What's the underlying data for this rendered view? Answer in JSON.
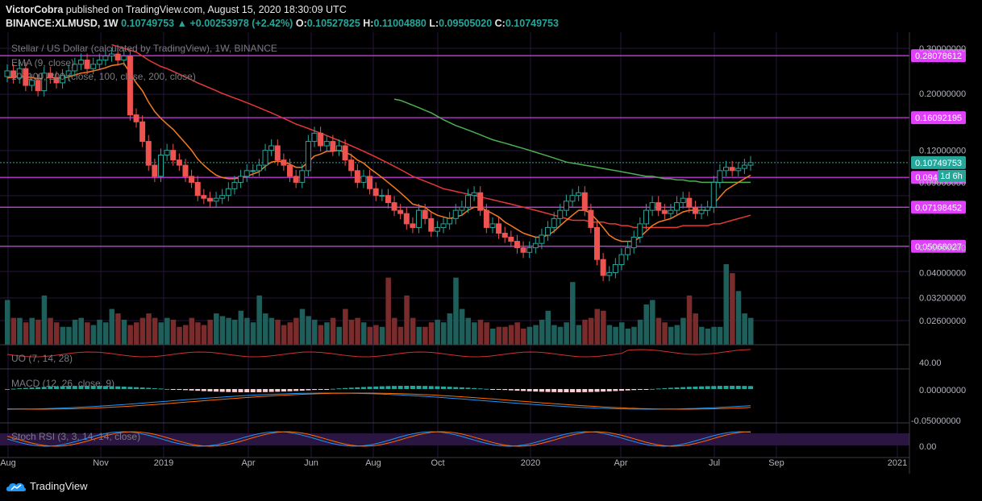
{
  "header": {
    "author": "VictorCobra",
    "published": " published on TradingView.com, August 15, 2020 18:30:09 UTC",
    "symbol": "BINANCE:XLMUSD, 1W",
    "last": "0.10749753",
    "change": "+0.00253978 (+2.42%)",
    "o_label": "O:",
    "o": "0.10527825",
    "h_label": "H:",
    "h": "0.11004880",
    "l_label": "L:",
    "l": "0.09505020",
    "c_label": "C:",
    "c": "0.10749753"
  },
  "legend": {
    "title": "Stellar / US Dollar (calculated by TradingView), 1W, BINANCE",
    "ema": "EMA (9, close)",
    "ma": "10, 100, 200 (close, 100, close, 200, close)",
    "uo": "UO (7, 14, 28)",
    "macd": "MACD (12, 26, close, 9)",
    "stoch": "Stoch RSI (3, 3, 14, 14, close)"
  },
  "footer": {
    "brand": "TradingView"
  },
  "colors": {
    "up": "#26a69a",
    "down": "#ef5350",
    "ema9": "#f57c1f",
    "ma100": "#e53935",
    "ma200": "#4caf50",
    "hline": "#e040fb",
    "vol_up": "#1f5f5b",
    "vol_down": "#7a2b2b"
  },
  "chart_data": [
    {
      "type": "candlestick",
      "title": "Stellar / US Dollar (calculated by TradingView), 1W, BINANCE",
      "scale": "log",
      "x_ticks": [
        "Aug",
        "Nov",
        "2019",
        "Apr",
        "Jun",
        "Aug",
        "Oct",
        "2020",
        "Apr",
        "Jul",
        "Sep",
        "2021"
      ],
      "y_ticks": [
        "0.30000000",
        "0.20000000",
        "0.12000000",
        "0.09000000",
        "0.05000000",
        "0.04000000",
        "0.03200000",
        "0.02600000"
      ],
      "horizontal_levels": [
        {
          "label": "0.28078612",
          "value": 0.28078612
        },
        {
          "label": "0.16092195",
          "value": 0.16092195
        },
        {
          "label": "0.09413011",
          "value": 0.09413011
        },
        {
          "label": "0.07198452",
          "value": 0.07198452
        },
        {
          "label": "0.05068027",
          "value": 0.05068027
        }
      ],
      "last_price_label": "0.10749753",
      "countdown": "1d 6h",
      "closes": [
        0.245,
        0.23,
        0.25,
        0.215,
        0.225,
        0.205,
        0.24,
        0.23,
        0.22,
        0.235,
        0.245,
        0.26,
        0.27,
        0.25,
        0.26,
        0.27,
        0.28,
        0.285,
        0.27,
        0.28,
        0.165,
        0.155,
        0.13,
        0.105,
        0.095,
        0.115,
        0.12,
        0.11,
        0.105,
        0.095,
        0.09,
        0.08,
        0.078,
        0.076,
        0.078,
        0.08,
        0.085,
        0.09,
        0.095,
        0.1,
        0.1,
        0.105,
        0.12,
        0.125,
        0.11,
        0.105,
        0.095,
        0.09,
        0.1,
        0.13,
        0.14,
        0.125,
        0.13,
        0.12,
        0.125,
        0.11,
        0.1,
        0.09,
        0.095,
        0.085,
        0.08,
        0.08,
        0.075,
        0.07,
        0.068,
        0.062,
        0.06,
        0.07,
        0.065,
        0.058,
        0.06,
        0.062,
        0.065,
        0.07,
        0.072,
        0.08,
        0.082,
        0.07,
        0.06,
        0.062,
        0.057,
        0.055,
        0.053,
        0.05,
        0.048,
        0.05,
        0.052,
        0.056,
        0.06,
        0.065,
        0.07,
        0.076,
        0.08,
        0.082,
        0.07,
        0.06,
        0.045,
        0.039,
        0.04,
        0.043,
        0.047,
        0.05,
        0.055,
        0.062,
        0.07,
        0.075,
        0.07,
        0.068,
        0.07,
        0.075,
        0.078,
        0.072,
        0.068,
        0.07,
        0.072,
        0.09,
        0.1,
        0.103,
        0.1,
        0.102,
        0.105,
        0.1075
      ],
      "ema9": [
        0.23,
        0.232,
        0.234,
        0.232,
        0.231,
        0.228,
        0.23,
        0.231,
        0.23,
        0.23,
        0.232,
        0.236,
        0.24,
        0.242,
        0.245,
        0.248,
        0.252,
        0.257,
        0.259,
        0.262,
        0.24,
        0.22,
        0.205,
        0.185,
        0.17,
        0.16,
        0.152,
        0.145,
        0.136,
        0.128,
        0.12,
        0.111,
        0.105,
        0.1,
        0.096,
        0.094,
        0.093,
        0.093,
        0.094,
        0.095,
        0.097,
        0.099,
        0.104,
        0.108,
        0.109,
        0.108,
        0.106,
        0.103,
        0.103,
        0.108,
        0.114,
        0.116,
        0.119,
        0.119,
        0.12,
        0.118,
        0.115,
        0.11,
        0.107,
        0.102,
        0.098,
        0.094,
        0.09,
        0.086,
        0.082,
        0.078,
        0.074,
        0.073,
        0.072,
        0.069,
        0.067,
        0.066,
        0.065,
        0.066,
        0.067,
        0.07,
        0.072,
        0.072,
        0.07,
        0.068,
        0.066,
        0.063,
        0.061,
        0.059,
        0.057,
        0.056,
        0.055,
        0.055,
        0.056,
        0.058,
        0.061,
        0.064,
        0.067,
        0.07,
        0.07,
        0.068,
        0.064,
        0.06,
        0.056,
        0.054,
        0.053,
        0.053,
        0.053,
        0.055,
        0.058,
        0.061,
        0.063,
        0.064,
        0.065,
        0.067,
        0.069,
        0.07,
        0.07,
        0.07,
        0.07,
        0.074,
        0.079,
        0.084,
        0.087,
        0.09,
        0.093,
        0.096
      ],
      "ma100": [
        null,
        null,
        null,
        null,
        null,
        null,
        null,
        null,
        null,
        null,
        null,
        null,
        null,
        null,
        null,
        null,
        null,
        0.31,
        0.305,
        0.3,
        0.295,
        0.29,
        0.28,
        0.27,
        0.262,
        0.255,
        0.25,
        0.244,
        0.238,
        0.232,
        0.226,
        0.22,
        0.215,
        0.21,
        0.205,
        0.2,
        0.196,
        0.192,
        0.188,
        0.184,
        0.18,
        0.176,
        0.172,
        0.168,
        0.164,
        0.16,
        0.156,
        0.152,
        0.149,
        0.146,
        0.143,
        0.14,
        0.137,
        0.134,
        0.131,
        0.128,
        0.125,
        0.122,
        0.119,
        0.116,
        0.113,
        0.11,
        0.107,
        0.104,
        0.101,
        0.098,
        0.095,
        0.093,
        0.091,
        0.089,
        0.087,
        0.085,
        0.084,
        0.083,
        0.082,
        0.081,
        0.08,
        0.079,
        0.078,
        0.077,
        0.076,
        0.075,
        0.074,
        0.073,
        0.072,
        0.071,
        0.07,
        0.069,
        0.068,
        0.067,
        0.066,
        0.065,
        0.064,
        0.064,
        0.064,
        0.063,
        0.063,
        0.063,
        0.062,
        0.062,
        0.061,
        0.061,
        0.06,
        0.06,
        0.06,
        0.06,
        0.06,
        0.06,
        0.06,
        0.06,
        0.061,
        0.061,
        0.061,
        0.061,
        0.061,
        0.062,
        0.062,
        0.063,
        0.064,
        0.065,
        0.066,
        0.067
      ],
      "ma200": [
        null,
        null,
        null,
        null,
        null,
        null,
        null,
        null,
        null,
        null,
        null,
        null,
        null,
        null,
        null,
        null,
        null,
        null,
        null,
        null,
        null,
        null,
        null,
        null,
        null,
        null,
        null,
        null,
        null,
        null,
        null,
        null,
        null,
        null,
        null,
        null,
        null,
        null,
        null,
        null,
        null,
        null,
        null,
        null,
        null,
        null,
        null,
        null,
        null,
        null,
        null,
        null,
        null,
        null,
        null,
        null,
        null,
        null,
        null,
        null,
        null,
        null,
        null,
        0.19,
        0.188,
        0.184,
        0.18,
        0.176,
        0.172,
        0.168,
        0.163,
        0.158,
        0.154,
        0.15,
        0.147,
        0.144,
        0.141,
        0.138,
        0.135,
        0.132,
        0.13,
        0.128,
        0.126,
        0.124,
        0.122,
        0.12,
        0.118,
        0.116,
        0.114,
        0.112,
        0.11,
        0.108,
        0.107,
        0.106,
        0.105,
        0.104,
        0.103,
        0.102,
        0.101,
        0.1,
        0.099,
        0.098,
        0.097,
        0.096,
        0.095,
        0.095,
        0.094,
        0.093,
        0.093,
        0.092,
        0.092,
        0.091,
        0.091,
        0.09,
        0.09,
        0.09,
        0.09,
        0.09,
        0.09,
        0.09,
        0.09,
        0.09
      ],
      "volume": [
        50,
        30,
        30,
        25,
        30,
        28,
        55,
        30,
        25,
        20,
        20,
        28,
        30,
        25,
        22,
        28,
        25,
        40,
        35,
        28,
        22,
        25,
        30,
        35,
        30,
        25,
        30,
        28,
        20,
        22,
        30,
        25,
        22,
        28,
        35,
        32,
        30,
        28,
        38,
        30,
        25,
        55,
        35,
        30,
        28,
        22,
        25,
        30,
        40,
        32,
        28,
        22,
        25,
        30,
        20,
        40,
        28,
        30,
        25,
        20,
        22,
        20,
        75,
        30,
        20,
        55,
        30,
        20,
        20,
        25,
        28,
        25,
        35,
        75,
        40,
        30,
        25,
        28,
        25,
        18,
        20,
        20,
        22,
        25,
        18,
        20,
        22,
        28,
        38,
        22,
        20,
        25,
        70,
        22,
        28,
        30,
        40,
        38,
        22,
        20,
        25,
        18,
        20,
        28,
        45,
        50,
        30,
        25,
        20,
        22,
        30,
        55,
        35,
        20,
        18,
        20,
        20,
        90,
        80,
        60,
        35,
        30
      ]
    },
    {
      "type": "line",
      "name": "UO (7, 14, 28)",
      "y_ticks": [
        "40.00"
      ]
    },
    {
      "type": "line",
      "name": "MACD (12, 26, close, 9)",
      "y_ticks": [
        "0.00000000",
        "-0.05000000"
      ]
    },
    {
      "type": "line",
      "name": "Stoch RSI (3, 3, 14, 14, close)",
      "y_ticks": [
        "0.00"
      ]
    }
  ]
}
